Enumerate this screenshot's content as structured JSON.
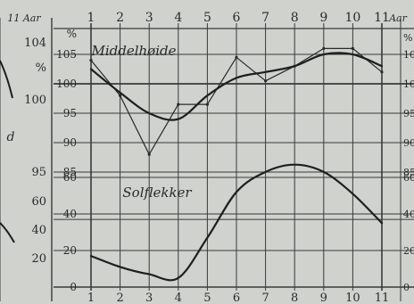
{
  "chart_data": {
    "type": "line",
    "x": [
      1,
      2,
      3,
      4,
      5,
      6,
      7,
      8,
      9,
      10,
      11
    ],
    "x_tick_labels": [
      "1",
      "2",
      "3",
      "4",
      "5",
      "6",
      "7",
      "8",
      "9",
      "10",
      "11"
    ],
    "x_top_label_suffix": "Aar",
    "annotations": [
      "Middelhøide",
      "Solflekker"
    ],
    "left_axis_labels": [
      "104",
      "%",
      "100",
      "95",
      "60",
      "40",
      "20"
    ],
    "inner_upper_labels": [
      "%",
      "105",
      "100",
      "95",
      "90",
      "85"
    ],
    "inner_lower_labels": [
      "60",
      "40",
      "20",
      "0"
    ],
    "right_axis_labels": [
      "%",
      "105",
      "100",
      "95",
      "90",
      "85",
      "60",
      "40",
      "20",
      "0"
    ],
    "left_panel_label": "d",
    "upper_panel": {
      "ylim": [
        85,
        107
      ],
      "series": [
        {
          "values": [
            104,
            98,
            88,
            96.5,
            96.5,
            104.5,
            100.5,
            103,
            106,
            106,
            102
          ]
        },
        {
          "values": [
            102.5,
            98.5,
            95,
            94,
            98,
            101,
            102,
            103,
            105,
            105,
            103
          ]
        }
      ]
    },
    "lower_panel": {
      "ylim": [
        0,
        75
      ],
      "series": [
        {
          "values": [
            17,
            11,
            7,
            5,
            27,
            52,
            63,
            67,
            63,
            51,
            35
          ]
        }
      ]
    },
    "grid": true
  }
}
